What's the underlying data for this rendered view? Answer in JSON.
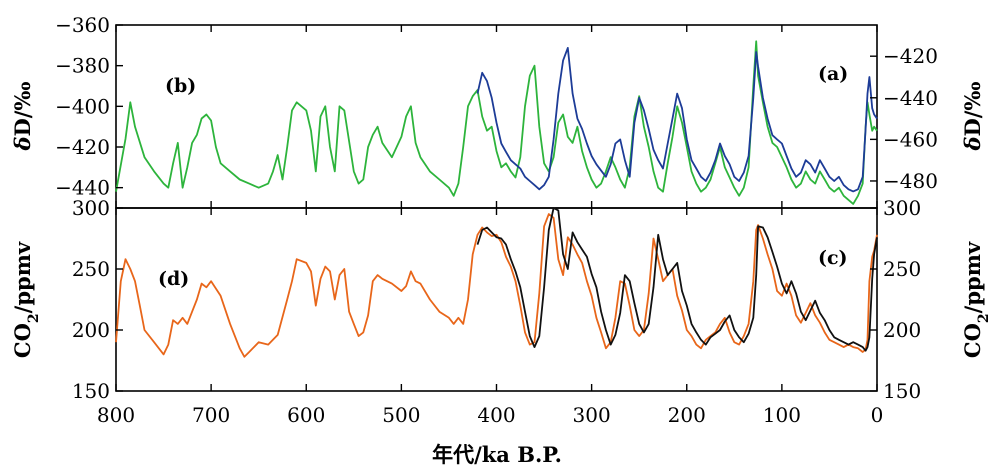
{
  "chart_data": [
    {
      "type": "line",
      "panel": "top",
      "xlabel": "年代/ka B.P.",
      "xlim": [
        800,
        0
      ],
      "xticks": [
        800,
        700,
        600,
        500,
        400,
        300,
        200,
        100,
        0
      ],
      "left_axis": {
        "ylabel_prefix": "δ",
        "ylabel": "D/‰",
        "ylim": [
          -450,
          -360
        ],
        "ticks": [
          -360,
          -380,
          -400,
          -420,
          -440
        ]
      },
      "right_axis": {
        "ylabel_prefix": "δ",
        "ylabel": "D/‰",
        "ylim": [
          -493,
          -405
        ],
        "ticks": [
          -420,
          -440,
          -460,
          -480
        ]
      },
      "panel_labels": {
        "left": "(b)",
        "right": "(a)"
      },
      "series": [
        {
          "label": "(b)",
          "axis": "left",
          "color": "#2db43c",
          "x": [
            800,
            790,
            785,
            780,
            770,
            760,
            750,
            745,
            740,
            735,
            730,
            725,
            720,
            715,
            710,
            705,
            700,
            695,
            690,
            680,
            670,
            660,
            650,
            640,
            635,
            630,
            625,
            620,
            615,
            610,
            600,
            595,
            590,
            585,
            580,
            575,
            570,
            565,
            560,
            550,
            545,
            540,
            535,
            530,
            525,
            520,
            510,
            500,
            495,
            490,
            485,
            480,
            470,
            460,
            450,
            445,
            440,
            435,
            430,
            425,
            420,
            415,
            410,
            405,
            400,
            395,
            390,
            385,
            380,
            375,
            370,
            365,
            360,
            355,
            350,
            345,
            340,
            335,
            330,
            325,
            320,
            315,
            310,
            305,
            300,
            295,
            290,
            285,
            280,
            275,
            270,
            265,
            260,
            255,
            250,
            245,
            240,
            235,
            230,
            225,
            220,
            215,
            210,
            205,
            200,
            195,
            190,
            185,
            180,
            175,
            170,
            165,
            160,
            155,
            150,
            145,
            140,
            135,
            130,
            127,
            125,
            120,
            115,
            110,
            105,
            100,
            95,
            90,
            85,
            80,
            75,
            70,
            65,
            60,
            55,
            50,
            45,
            40,
            35,
            30,
            25,
            20,
            15,
            12,
            10,
            8,
            5,
            3,
            0
          ],
          "y": [
            -442,
            -416,
            -398,
            -410,
            -425,
            -432,
            -438,
            -440,
            -428,
            -418,
            -440,
            -430,
            -418,
            -414,
            -406,
            -404,
            -407,
            -420,
            -428,
            -432,
            -436,
            -438,
            -440,
            -438,
            -432,
            -424,
            -436,
            -420,
            -402,
            -398,
            -402,
            -412,
            -432,
            -405,
            -400,
            -420,
            -432,
            -400,
            -402,
            -432,
            -438,
            -436,
            -420,
            -414,
            -410,
            -418,
            -425,
            -415,
            -405,
            -400,
            -418,
            -425,
            -432,
            -436,
            -440,
            -444,
            -438,
            -420,
            -400,
            -395,
            -392,
            -405,
            -412,
            -410,
            -422,
            -430,
            -428,
            -432,
            -435,
            -425,
            -400,
            -385,
            -380,
            -410,
            -428,
            -432,
            -425,
            -408,
            -404,
            -415,
            -418,
            -410,
            -422,
            -430,
            -436,
            -440,
            -438,
            -432,
            -425,
            -430,
            -436,
            -440,
            -430,
            -405,
            -395,
            -410,
            -420,
            -432,
            -440,
            -442,
            -428,
            -415,
            -400,
            -408,
            -420,
            -432,
            -438,
            -442,
            -440,
            -436,
            -428,
            -420,
            -430,
            -435,
            -440,
            -444,
            -440,
            -430,
            -390,
            -368,
            -385,
            -398,
            -410,
            -418,
            -420,
            -425,
            -430,
            -436,
            -440,
            -438,
            -432,
            -436,
            -438,
            -432,
            -436,
            -440,
            -442,
            -440,
            -444,
            -446,
            -448,
            -444,
            -438,
            -410,
            -398,
            -404,
            -412,
            -410,
            -412
          ]
        },
        {
          "label": "(a)",
          "axis": "right",
          "color": "#1d3c97",
          "x": [
            420,
            415,
            410,
            405,
            400,
            395,
            390,
            385,
            380,
            375,
            370,
            365,
            360,
            355,
            350,
            345,
            340,
            335,
            330,
            325,
            320,
            315,
            310,
            305,
            300,
            295,
            290,
            285,
            280,
            275,
            270,
            265,
            260,
            255,
            250,
            245,
            240,
            235,
            230,
            225,
            220,
            215,
            210,
            205,
            200,
            195,
            190,
            185,
            180,
            175,
            170,
            165,
            160,
            155,
            150,
            145,
            140,
            135,
            130,
            127,
            125,
            120,
            115,
            110,
            105,
            100,
            95,
            90,
            85,
            80,
            75,
            70,
            65,
            60,
            55,
            50,
            45,
            40,
            35,
            30,
            25,
            20,
            15,
            12,
            10,
            8,
            5,
            3,
            0
          ],
          "y": [
            -438,
            -428,
            -432,
            -440,
            -452,
            -462,
            -466,
            -470,
            -472,
            -474,
            -478,
            -480,
            -482,
            -484,
            -482,
            -478,
            -460,
            -438,
            -422,
            -416,
            -438,
            -450,
            -455,
            -462,
            -468,
            -472,
            -475,
            -478,
            -472,
            -462,
            -460,
            -470,
            -478,
            -452,
            -440,
            -446,
            -455,
            -465,
            -470,
            -474,
            -462,
            -450,
            -438,
            -445,
            -460,
            -470,
            -474,
            -478,
            -480,
            -476,
            -470,
            -462,
            -468,
            -472,
            -478,
            -480,
            -476,
            -468,
            -440,
            -418,
            -425,
            -440,
            -450,
            -458,
            -460,
            -462,
            -468,
            -474,
            -478,
            -476,
            -470,
            -472,
            -476,
            -470,
            -474,
            -478,
            -480,
            -478,
            -482,
            -484,
            -485,
            -484,
            -478,
            -455,
            -438,
            -430,
            -445,
            -448,
            -450
          ]
        }
      ]
    },
    {
      "type": "line",
      "panel": "bottom",
      "xlabel": "年代/ka B.P.",
      "xlim": [
        800,
        0
      ],
      "xticks": [
        800,
        700,
        600,
        500,
        400,
        300,
        200,
        100,
        0
      ],
      "left_axis": {
        "ylabel_main": "CO",
        "ylabel_sub": "2",
        "ylabel_rest": "/ppmv",
        "ylim": [
          150,
          300
        ],
        "ticks": [
          300,
          250,
          200,
          150
        ]
      },
      "right_axis": {
        "ylabel_main": "CO",
        "ylabel_sub": "2",
        "ylabel_rest": "/ppmv",
        "ylim": [
          150,
          300
        ],
        "ticks": [
          300,
          250,
          200,
          150
        ]
      },
      "panel_labels": {
        "left": "(d)",
        "right": "(c)"
      },
      "series": [
        {
          "label": "(d)",
          "color": "#e8661a",
          "x": [
            800,
            795,
            790,
            785,
            780,
            775,
            770,
            760,
            750,
            745,
            740,
            735,
            730,
            725,
            720,
            715,
            710,
            705,
            700,
            690,
            680,
            670,
            665,
            660,
            650,
            640,
            630,
            620,
            615,
            610,
            600,
            595,
            590,
            585,
            580,
            575,
            570,
            565,
            560,
            555,
            550,
            545,
            540,
            535,
            530,
            525,
            520,
            510,
            500,
            495,
            490,
            485,
            480,
            470,
            460,
            450,
            445,
            440,
            435,
            430,
            425,
            420,
            415,
            410,
            405,
            400,
            395,
            390,
            385,
            380,
            375,
            370,
            365,
            360,
            355,
            350,
            345,
            340,
            335,
            330,
            325,
            320,
            315,
            310,
            305,
            300,
            295,
            290,
            285,
            280,
            275,
            270,
            265,
            260,
            255,
            250,
            245,
            240,
            235,
            230,
            225,
            220,
            215,
            210,
            205,
            200,
            195,
            190,
            185,
            180,
            175,
            170,
            165,
            160,
            155,
            150,
            145,
            140,
            135,
            130,
            127,
            125,
            120,
            115,
            110,
            105,
            100,
            95,
            90,
            85,
            80,
            75,
            70,
            65,
            60,
            55,
            50,
            45,
            40,
            35,
            30,
            25,
            20,
            15,
            12,
            10,
            8,
            5,
            3,
            0
          ],
          "y": [
            190,
            240,
            258,
            250,
            240,
            220,
            200,
            190,
            180,
            188,
            208,
            205,
            210,
            205,
            215,
            225,
            238,
            235,
            240,
            228,
            205,
            185,
            178,
            182,
            190,
            188,
            196,
            225,
            240,
            258,
            255,
            248,
            220,
            242,
            252,
            248,
            225,
            245,
            250,
            215,
            205,
            195,
            198,
            212,
            240,
            245,
            242,
            238,
            232,
            236,
            248,
            240,
            238,
            225,
            215,
            210,
            205,
            210,
            205,
            225,
            262,
            278,
            284,
            280,
            277,
            278,
            272,
            260,
            252,
            240,
            220,
            198,
            188,
            190,
            230,
            285,
            295,
            292,
            258,
            245,
            276,
            270,
            262,
            255,
            240,
            228,
            210,
            198,
            185,
            190,
            210,
            240,
            238,
            220,
            200,
            195,
            200,
            230,
            275,
            258,
            240,
            245,
            250,
            228,
            216,
            200,
            195,
            188,
            185,
            192,
            195,
            198,
            205,
            210,
            198,
            190,
            188,
            195,
            205,
            240,
            282,
            286,
            275,
            262,
            250,
            232,
            228,
            238,
            228,
            212,
            206,
            214,
            222,
            212,
            206,
            198,
            192,
            190,
            188,
            186,
            188,
            186,
            185,
            182,
            184,
            192,
            240,
            260,
            265,
            278
          ]
        },
        {
          "label": "(c)",
          "color": "#111111",
          "x": [
            420,
            415,
            410,
            405,
            400,
            395,
            390,
            385,
            380,
            375,
            370,
            365,
            360,
            355,
            350,
            345,
            340,
            335,
            330,
            325,
            320,
            315,
            310,
            305,
            300,
            295,
            290,
            285,
            280,
            275,
            270,
            265,
            260,
            255,
            250,
            245,
            240,
            235,
            230,
            225,
            220,
            215,
            210,
            205,
            200,
            195,
            190,
            185,
            180,
            175,
            170,
            165,
            160,
            155,
            150,
            145,
            140,
            135,
            130,
            127,
            125,
            120,
            115,
            110,
            105,
            100,
            95,
            90,
            85,
            80,
            75,
            70,
            65,
            60,
            55,
            50,
            45,
            40,
            35,
            30,
            25,
            20,
            15,
            12,
            10,
            8,
            5,
            3,
            0
          ],
          "y": [
            270,
            282,
            284,
            280,
            276,
            275,
            270,
            258,
            248,
            235,
            215,
            195,
            186,
            195,
            235,
            282,
            300,
            298,
            262,
            250,
            280,
            272,
            266,
            260,
            246,
            235,
            215,
            200,
            188,
            196,
            214,
            245,
            240,
            222,
            205,
            198,
            205,
            235,
            278,
            258,
            245,
            250,
            255,
            232,
            220,
            205,
            198,
            192,
            188,
            194,
            197,
            200,
            207,
            212,
            200,
            194,
            190,
            197,
            210,
            245,
            285,
            284,
            276,
            264,
            252,
            238,
            230,
            240,
            230,
            215,
            208,
            216,
            224,
            214,
            208,
            200,
            194,
            192,
            190,
            188,
            190,
            188,
            186,
            183,
            186,
            194,
            242,
            262,
            276
          ]
        }
      ]
    }
  ]
}
